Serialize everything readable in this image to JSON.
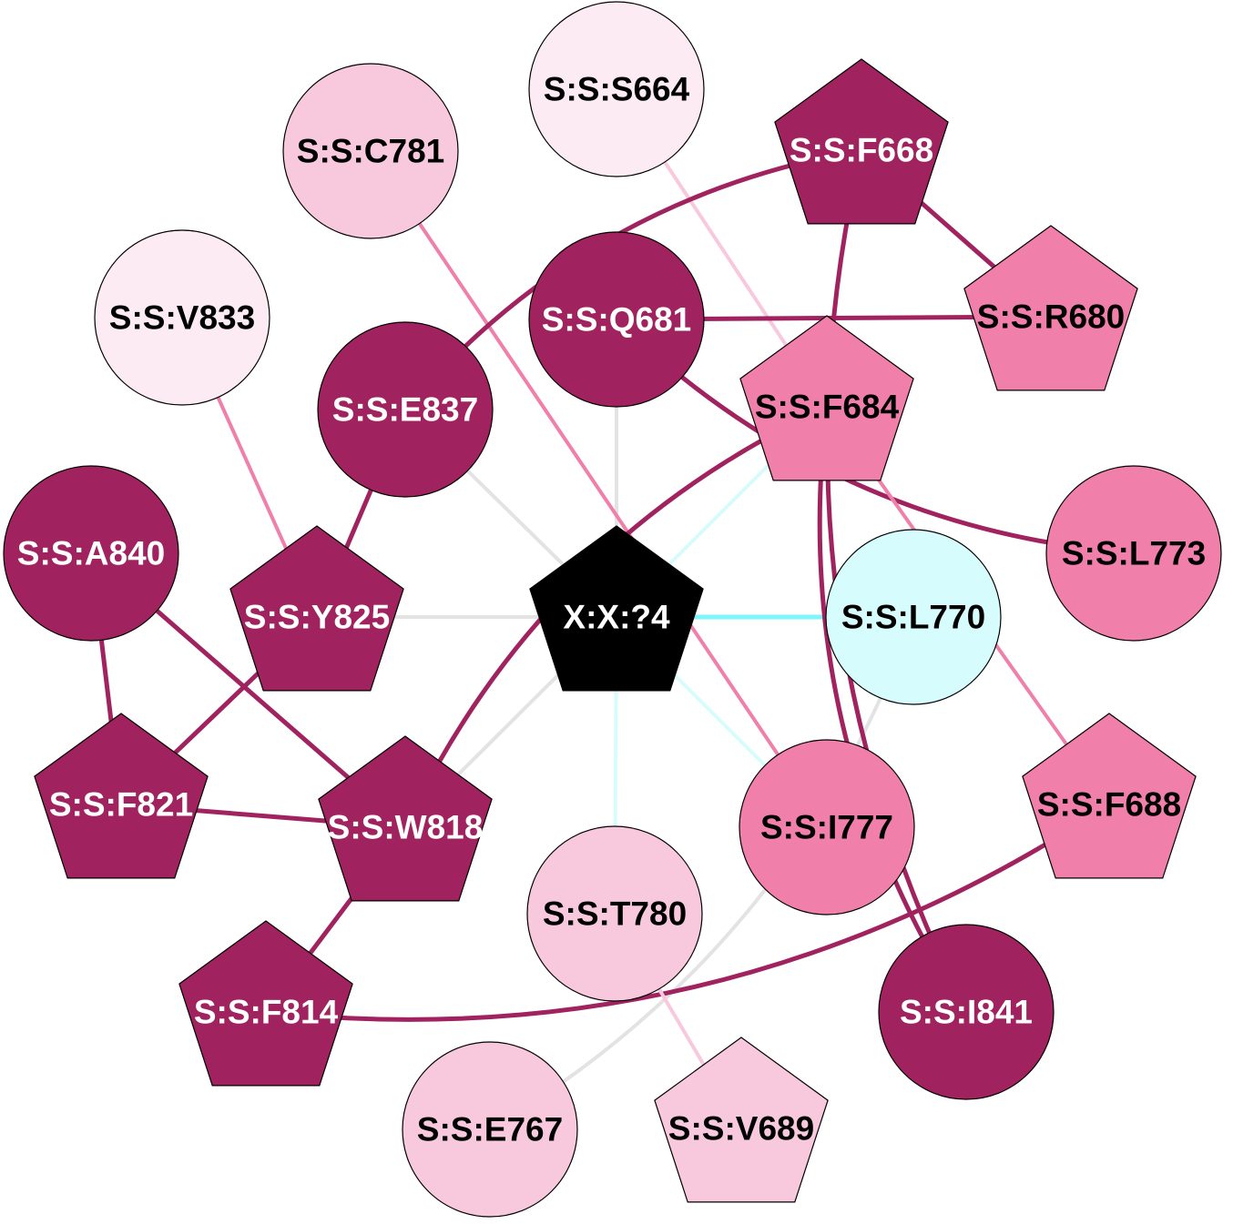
{
  "colors": {
    "dark": "#A0235F",
    "medium": "#F07FAA",
    "light": "#F8C8DC",
    "pale": "#FCEBF2",
    "cyan": "#D6FCFE",
    "center": "#000000",
    "edge_gray": "#E3E3E3",
    "edge_cyan": "#7FF6FA",
    "edge_cyan_light": "#D8FBFC"
  },
  "nodes": [
    {
      "id": "X:X:?4",
      "label": "X:X:?4",
      "shape": "pentagon",
      "fill": "center",
      "text": "white"
    },
    {
      "id": "S:S:S664",
      "label": "S:S:S664",
      "shape": "circle",
      "fill": "pale",
      "text": "black"
    },
    {
      "id": "S:S:C781",
      "label": "S:S:C781",
      "shape": "circle",
      "fill": "light",
      "text": "black"
    },
    {
      "id": "S:S:F668",
      "label": "S:S:F668",
      "shape": "pentagon",
      "fill": "dark",
      "text": "white"
    },
    {
      "id": "S:S:V833",
      "label": "S:S:V833",
      "shape": "circle",
      "fill": "pale",
      "text": "black"
    },
    {
      "id": "S:S:Q681",
      "label": "S:S:Q681",
      "shape": "circle",
      "fill": "dark",
      "text": "white"
    },
    {
      "id": "S:S:R680",
      "label": "S:S:R680",
      "shape": "pentagon",
      "fill": "medium",
      "text": "black"
    },
    {
      "id": "S:S:E837",
      "label": "S:S:E837",
      "shape": "circle",
      "fill": "dark",
      "text": "white"
    },
    {
      "id": "S:S:F684",
      "label": "S:S:F684",
      "shape": "pentagon",
      "fill": "medium",
      "text": "black"
    },
    {
      "id": "S:S:L773",
      "label": "S:S:L773",
      "shape": "circle",
      "fill": "medium",
      "text": "black"
    },
    {
      "id": "S:S:A840",
      "label": "S:S:A840",
      "shape": "circle",
      "fill": "dark",
      "text": "white"
    },
    {
      "id": "S:S:Y825",
      "label": "S:S:Y825",
      "shape": "pentagon",
      "fill": "dark",
      "text": "white"
    },
    {
      "id": "S:S:L770",
      "label": "S:S:L770",
      "shape": "circle",
      "fill": "cyan",
      "text": "black"
    },
    {
      "id": "S:S:F821",
      "label": "S:S:F821",
      "shape": "pentagon",
      "fill": "dark",
      "text": "white"
    },
    {
      "id": "S:S:W818",
      "label": "S:S:W818",
      "shape": "pentagon",
      "fill": "dark",
      "text": "white"
    },
    {
      "id": "S:S:I777",
      "label": "S:S:I777",
      "shape": "circle",
      "fill": "medium",
      "text": "black"
    },
    {
      "id": "S:S:F688",
      "label": "S:S:F688",
      "shape": "pentagon",
      "fill": "medium",
      "text": "black"
    },
    {
      "id": "S:S:T780",
      "label": "S:S:T780",
      "shape": "circle",
      "fill": "light",
      "text": "black"
    },
    {
      "id": "S:S:F814",
      "label": "S:S:F814",
      "shape": "pentagon",
      "fill": "dark",
      "text": "white"
    },
    {
      "id": "S:S:I841",
      "label": "S:S:I841",
      "shape": "circle",
      "fill": "dark",
      "text": "white"
    },
    {
      "id": "S:S:E767",
      "label": "S:S:E767",
      "shape": "circle",
      "fill": "light",
      "text": "black"
    },
    {
      "id": "S:S:V689",
      "label": "S:S:V689",
      "shape": "pentagon",
      "fill": "light",
      "text": "black"
    }
  ],
  "edges": [
    {
      "source": "X:X:?4",
      "target": "S:S:Q681",
      "color": "edge_gray",
      "weight": "thin"
    },
    {
      "source": "X:X:?4",
      "target": "S:S:E837",
      "color": "edge_gray",
      "weight": "thin"
    },
    {
      "source": "X:X:?4",
      "target": "S:S:Y825",
      "color": "edge_gray",
      "weight": "thin"
    },
    {
      "source": "X:X:?4",
      "target": "S:S:W818",
      "color": "edge_gray",
      "weight": "thin"
    },
    {
      "source": "X:X:?4",
      "target": "S:S:L770",
      "color": "edge_cyan",
      "weight": "medium"
    },
    {
      "source": "X:X:?4",
      "target": "S:S:F684",
      "color": "edge_cyan_light",
      "weight": "thin"
    },
    {
      "source": "X:X:?4",
      "target": "S:S:I777",
      "color": "edge_cyan_light",
      "weight": "thin"
    },
    {
      "source": "X:X:?4",
      "target": "S:S:T780",
      "color": "edge_cyan_light",
      "weight": "thin"
    },
    {
      "source": "S:S:L770",
      "target": "S:S:E767",
      "color": "edge_gray",
      "weight": "thin",
      "curve": "right"
    },
    {
      "source": "S:S:S664",
      "target": "S:S:F684",
      "color": "light",
      "weight": "thin"
    },
    {
      "source": "S:S:C781",
      "target": "S:S:I777",
      "color": "medium",
      "weight": "thin"
    },
    {
      "source": "S:S:F668",
      "target": "S:S:E837",
      "color": "dark",
      "weight": "thick",
      "curve": "left"
    },
    {
      "source": "S:S:F668",
      "target": "S:S:R680",
      "color": "dark",
      "weight": "thick"
    },
    {
      "source": "S:S:F668",
      "target": "S:S:I841",
      "color": "dark",
      "weight": "thick",
      "curve": "left"
    },
    {
      "source": "S:S:Q681",
      "target": "S:S:R680",
      "color": "dark",
      "weight": "thick"
    },
    {
      "source": "S:S:Q681",
      "target": "S:S:L773",
      "color": "dark",
      "weight": "thick",
      "curve": "left"
    },
    {
      "source": "S:S:V833",
      "target": "S:S:Y825",
      "color": "medium",
      "weight": "thin"
    },
    {
      "source": "S:S:E837",
      "target": "S:S:Y825",
      "color": "dark",
      "weight": "thick"
    },
    {
      "source": "S:S:F684",
      "target": "S:S:W818",
      "color": "dark",
      "weight": "thick",
      "curve": "left"
    },
    {
      "source": "S:S:F684",
      "target": "S:S:I841",
      "color": "dark",
      "weight": "thick",
      "curve": "left"
    },
    {
      "source": "S:S:F684",
      "target": "S:S:F688",
      "color": "medium",
      "weight": "thin"
    },
    {
      "source": "S:S:A840",
      "target": "S:S:F821",
      "color": "dark",
      "weight": "thick"
    },
    {
      "source": "S:S:A840",
      "target": "S:S:W818",
      "color": "dark",
      "weight": "thick"
    },
    {
      "source": "S:S:Y825",
      "target": "S:S:F821",
      "color": "dark",
      "weight": "thick"
    },
    {
      "source": "S:S:F821",
      "target": "S:S:W818",
      "color": "dark",
      "weight": "thick"
    },
    {
      "source": "S:S:W818",
      "target": "S:S:F814",
      "color": "dark",
      "weight": "thick"
    },
    {
      "source": "S:S:F688",
      "target": "S:S:F814",
      "color": "dark",
      "weight": "thick",
      "curve": "right"
    },
    {
      "source": "S:S:T780",
      "target": "S:S:V689",
      "color": "light",
      "weight": "thin"
    }
  ]
}
